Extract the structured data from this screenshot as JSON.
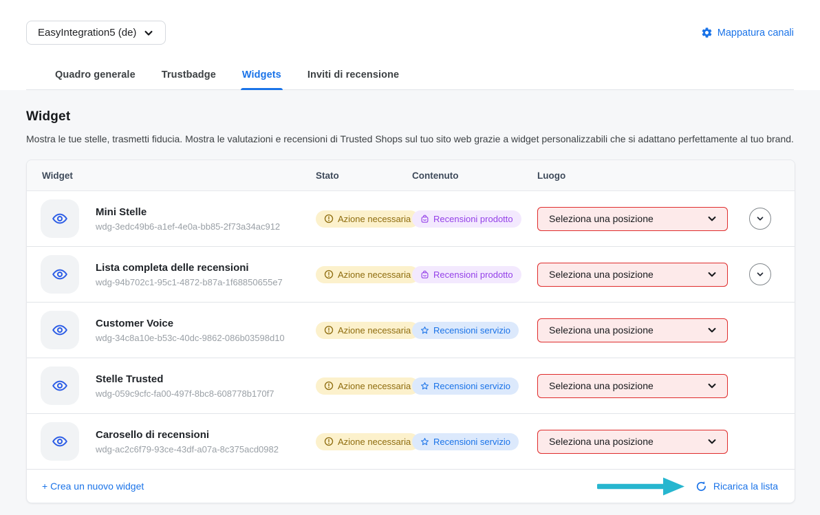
{
  "header": {
    "shop_selector_label": "EasyIntegration5 (de)",
    "channel_mapping_label": "Mappatura canali"
  },
  "tabs": [
    {
      "label": "Quadro generale",
      "active": false
    },
    {
      "label": "Trustbadge",
      "active": false
    },
    {
      "label": "Widgets",
      "active": true
    },
    {
      "label": "Inviti di recensione",
      "active": false
    }
  ],
  "page": {
    "title": "Widget",
    "description": "Mostra le tue stelle, trasmetti fiducia. Mostra le valutazioni e recensioni di Trusted Shops sul tuo sito web grazie a widget personalizzabili che si adattano perfettamente al tuo brand."
  },
  "table": {
    "columns": [
      "Widget",
      "Stato",
      "Contenuto",
      "Luogo"
    ],
    "rows": [
      {
        "name": "Mini Stelle",
        "id": "wdg-3edc49b6-a1ef-4e0a-bb85-2f73a34ac912",
        "status": "Azione necessaria",
        "content": "Recensioni prodotto",
        "content_type": "product",
        "location_placeholder": "Seleziona una posizione",
        "expandable": true
      },
      {
        "name": "Lista completa delle recensioni",
        "id": "wdg-94b702c1-95c1-4872-b87a-1f68850655e7",
        "status": "Azione necessaria",
        "content": "Recensioni prodotto",
        "content_type": "product",
        "location_placeholder": "Seleziona una posizione",
        "expandable": true
      },
      {
        "name": "Customer Voice",
        "id": "wdg-34c8a10e-b53c-40dc-9862-086b03598d10",
        "status": "Azione necessaria",
        "content": "Recensioni servizio",
        "content_type": "service",
        "location_placeholder": "Seleziona una posizione",
        "expandable": false
      },
      {
        "name": "Stelle Trusted",
        "id": "wdg-059c9cfc-fa00-497f-8bc8-608778b170f7",
        "status": "Azione necessaria",
        "content": "Recensioni servizio",
        "content_type": "service",
        "location_placeholder": "Seleziona una posizione",
        "expandable": false
      },
      {
        "name": "Carosello di recensioni",
        "id": "wdg-ac2c6f79-93ce-43df-a07a-8c375acd0982",
        "status": "Azione necessaria",
        "content": "Recensioni servizio",
        "content_type": "service",
        "location_placeholder": "Seleziona una posizione",
        "expandable": false
      }
    ],
    "footer": {
      "create_label": "+ Crea un nuovo widget",
      "reload_label": "Ricarica la lista"
    }
  },
  "colors": {
    "link_blue": "#1a73e8",
    "eye_blue": "#2b5ce6",
    "status_bg": "#fcf1cc",
    "status_text": "#8e6c0e",
    "product_bg": "#f3e9fe",
    "product_text": "#9440e8",
    "service_bg": "#dce9fc",
    "service_text": "#1a73e8",
    "select_border": "#df2b2b",
    "select_bg": "#fdeaea",
    "annotation_arrow": "#27b6cf"
  }
}
